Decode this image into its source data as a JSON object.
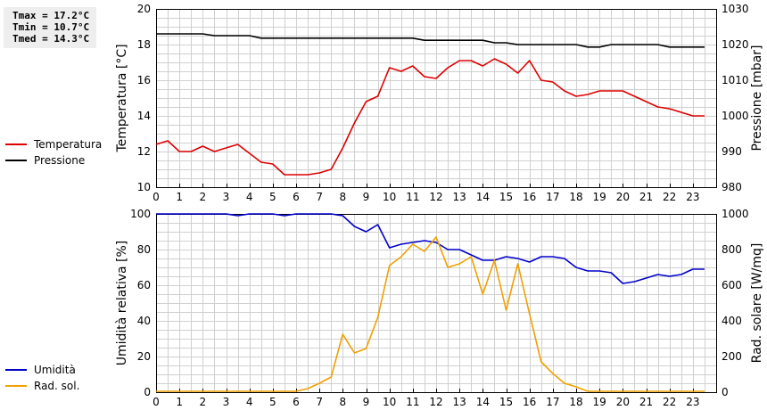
{
  "stats": {
    "tmax": "Tmax = 17.2°C",
    "tmin": "Tmin = 10.7°C",
    "tmed": "Tmed = 14.3°C"
  },
  "colors": {
    "temperature": "#dd0000",
    "pressure": "#000000",
    "humidity": "#0000cc",
    "radiation": "#f0a000",
    "grid": "#d0d0d0"
  },
  "chart_data": [
    {
      "type": "line",
      "x_ticks": [
        "0",
        "1",
        "2",
        "3",
        "4",
        "5",
        "6",
        "7",
        "8",
        "9",
        "10",
        "11",
        "12",
        "13",
        "14",
        "15",
        "16",
        "17",
        "18",
        "19",
        "20",
        "21",
        "22",
        "23"
      ],
      "xlim": [
        0,
        24
      ],
      "ylabel": "Temperatura [°C]",
      "ylim": [
        10,
        20
      ],
      "y_ticks": [
        "10",
        "12",
        "14",
        "16",
        "18",
        "20"
      ],
      "y2label": "Pressione [mbar]",
      "y2lim": [
        980,
        1030
      ],
      "y2_ticks": [
        "980",
        "990",
        "1000",
        "1010",
        "1020",
        "1030"
      ],
      "grid": true,
      "legend_position": "left",
      "series": [
        {
          "name": "Temperatura",
          "axis": "left",
          "x": [
            0,
            0.5,
            1,
            1.5,
            2,
            2.5,
            3,
            3.5,
            4,
            4.5,
            5,
            5.5,
            6,
            6.5,
            7,
            7.5,
            8,
            8.5,
            9,
            9.5,
            10,
            10.5,
            11,
            11.5,
            12,
            12.5,
            13,
            13.5,
            14,
            14.5,
            15,
            15.5,
            16,
            16.5,
            17,
            17.5,
            18,
            18.5,
            19,
            19.5,
            20,
            20.5,
            21,
            21.5,
            22,
            22.5,
            23,
            23.5
          ],
          "values": [
            12.4,
            12.6,
            12.0,
            12.0,
            12.3,
            12.0,
            12.2,
            12.4,
            11.9,
            11.4,
            11.3,
            10.7,
            10.7,
            10.7,
            10.8,
            11.0,
            12.2,
            13.6,
            14.8,
            15.1,
            16.7,
            16.5,
            16.8,
            16.2,
            16.1,
            16.7,
            17.1,
            17.1,
            16.8,
            17.2,
            16.9,
            16.4,
            17.1,
            16.0,
            15.9,
            15.4,
            15.1,
            15.2,
            15.4,
            15.4,
            15.4,
            15.1,
            14.8,
            14.5,
            14.4,
            14.2,
            14.0,
            14.0
          ]
        },
        {
          "name": "Pressione",
          "axis": "right",
          "x": [
            0,
            0.5,
            1,
            1.5,
            2,
            2.5,
            3,
            3.5,
            4,
            4.5,
            5,
            5.5,
            6,
            6.5,
            7,
            7.5,
            8,
            8.5,
            9,
            9.5,
            10,
            10.5,
            11,
            11.5,
            12,
            12.5,
            13,
            13.5,
            14,
            14.5,
            15,
            15.5,
            16,
            16.5,
            17,
            17.5,
            18,
            18.5,
            19,
            19.5,
            20,
            20.5,
            21,
            21.5,
            22,
            22.5,
            23,
            23.5
          ],
          "values": [
            1023,
            1023,
            1023,
            1023,
            1023,
            1022.5,
            1022.5,
            1022.5,
            1022.5,
            1021.8,
            1021.8,
            1021.8,
            1021.8,
            1021.8,
            1021.8,
            1021.8,
            1021.8,
            1021.8,
            1021.8,
            1021.8,
            1021.8,
            1021.8,
            1021.8,
            1021.2,
            1021.2,
            1021.2,
            1021.2,
            1021.2,
            1021.2,
            1020.5,
            1020.5,
            1020.0,
            1020.0,
            1020.0,
            1020.0,
            1020.0,
            1020.0,
            1019.3,
            1019.3,
            1020.0,
            1020.0,
            1020.0,
            1020.0,
            1020.0,
            1019.3,
            1019.3,
            1019.3,
            1019.3
          ]
        }
      ]
    },
    {
      "type": "line",
      "x_ticks": [
        "0",
        "1",
        "2",
        "3",
        "4",
        "5",
        "6",
        "7",
        "8",
        "9",
        "10",
        "11",
        "12",
        "13",
        "14",
        "15",
        "16",
        "17",
        "18",
        "19",
        "20",
        "21",
        "22",
        "23"
      ],
      "xlim": [
        0,
        24
      ],
      "ylabel": "Umidità relativa [%]",
      "ylim": [
        0,
        100
      ],
      "y_ticks": [
        "0",
        "20",
        "40",
        "60",
        "80",
        "100"
      ],
      "y2label": "Rad. solare [W/mq]",
      "y2lim": [
        0,
        1000
      ],
      "y2_ticks": [
        "0",
        "200",
        "400",
        "600",
        "800",
        "1000"
      ],
      "grid": true,
      "legend_position": "left",
      "series": [
        {
          "name": "Umidità",
          "axis": "left",
          "x": [
            0,
            0.5,
            1,
            1.5,
            2,
            2.5,
            3,
            3.5,
            4,
            4.5,
            5,
            5.5,
            6,
            6.5,
            7,
            7.5,
            8,
            8.5,
            9,
            9.5,
            10,
            10.5,
            11,
            11.5,
            12,
            12.5,
            13,
            13.5,
            14,
            14.5,
            15,
            15.5,
            16,
            16.5,
            17,
            17.5,
            18,
            18.5,
            19,
            19.5,
            20,
            20.5,
            21,
            21.5,
            22,
            22.5,
            23,
            23.5
          ],
          "values": [
            100,
            100,
            100,
            100,
            100,
            100,
            100,
            99,
            100,
            100,
            100,
            99,
            100,
            100,
            100,
            100,
            99,
            93,
            90,
            94,
            81,
            83,
            84,
            85,
            84,
            80,
            80,
            77,
            74,
            74,
            76,
            75,
            73,
            76,
            76,
            75,
            70,
            68,
            68,
            67,
            61,
            62,
            64,
            66,
            65,
            66,
            69,
            69
          ]
        },
        {
          "name": "Rad. sol.",
          "axis": "right",
          "x": [
            0,
            0.5,
            1,
            1.5,
            2,
            2.5,
            3,
            3.5,
            4,
            4.5,
            5,
            5.5,
            6,
            6.5,
            7,
            7.5,
            8,
            8.5,
            9,
            9.5,
            10,
            10.5,
            11,
            11.5,
            12,
            12.5,
            13,
            13.5,
            14,
            14.5,
            15,
            15.5,
            16,
            16.5,
            17,
            17.5,
            18,
            18.5,
            19,
            19.5,
            20,
            20.5,
            21,
            21.5,
            22,
            22.5,
            23,
            23.5
          ],
          "values": [
            5,
            5,
            5,
            5,
            5,
            5,
            5,
            5,
            5,
            5,
            5,
            5,
            5,
            20,
            50,
            85,
            325,
            220,
            245,
            420,
            710,
            760,
            830,
            790,
            870,
            700,
            720,
            760,
            550,
            740,
            460,
            720,
            440,
            170,
            105,
            50,
            30,
            5,
            5,
            5,
            5,
            5,
            5,
            5,
            5,
            5,
            5,
            5
          ]
        }
      ]
    }
  ]
}
